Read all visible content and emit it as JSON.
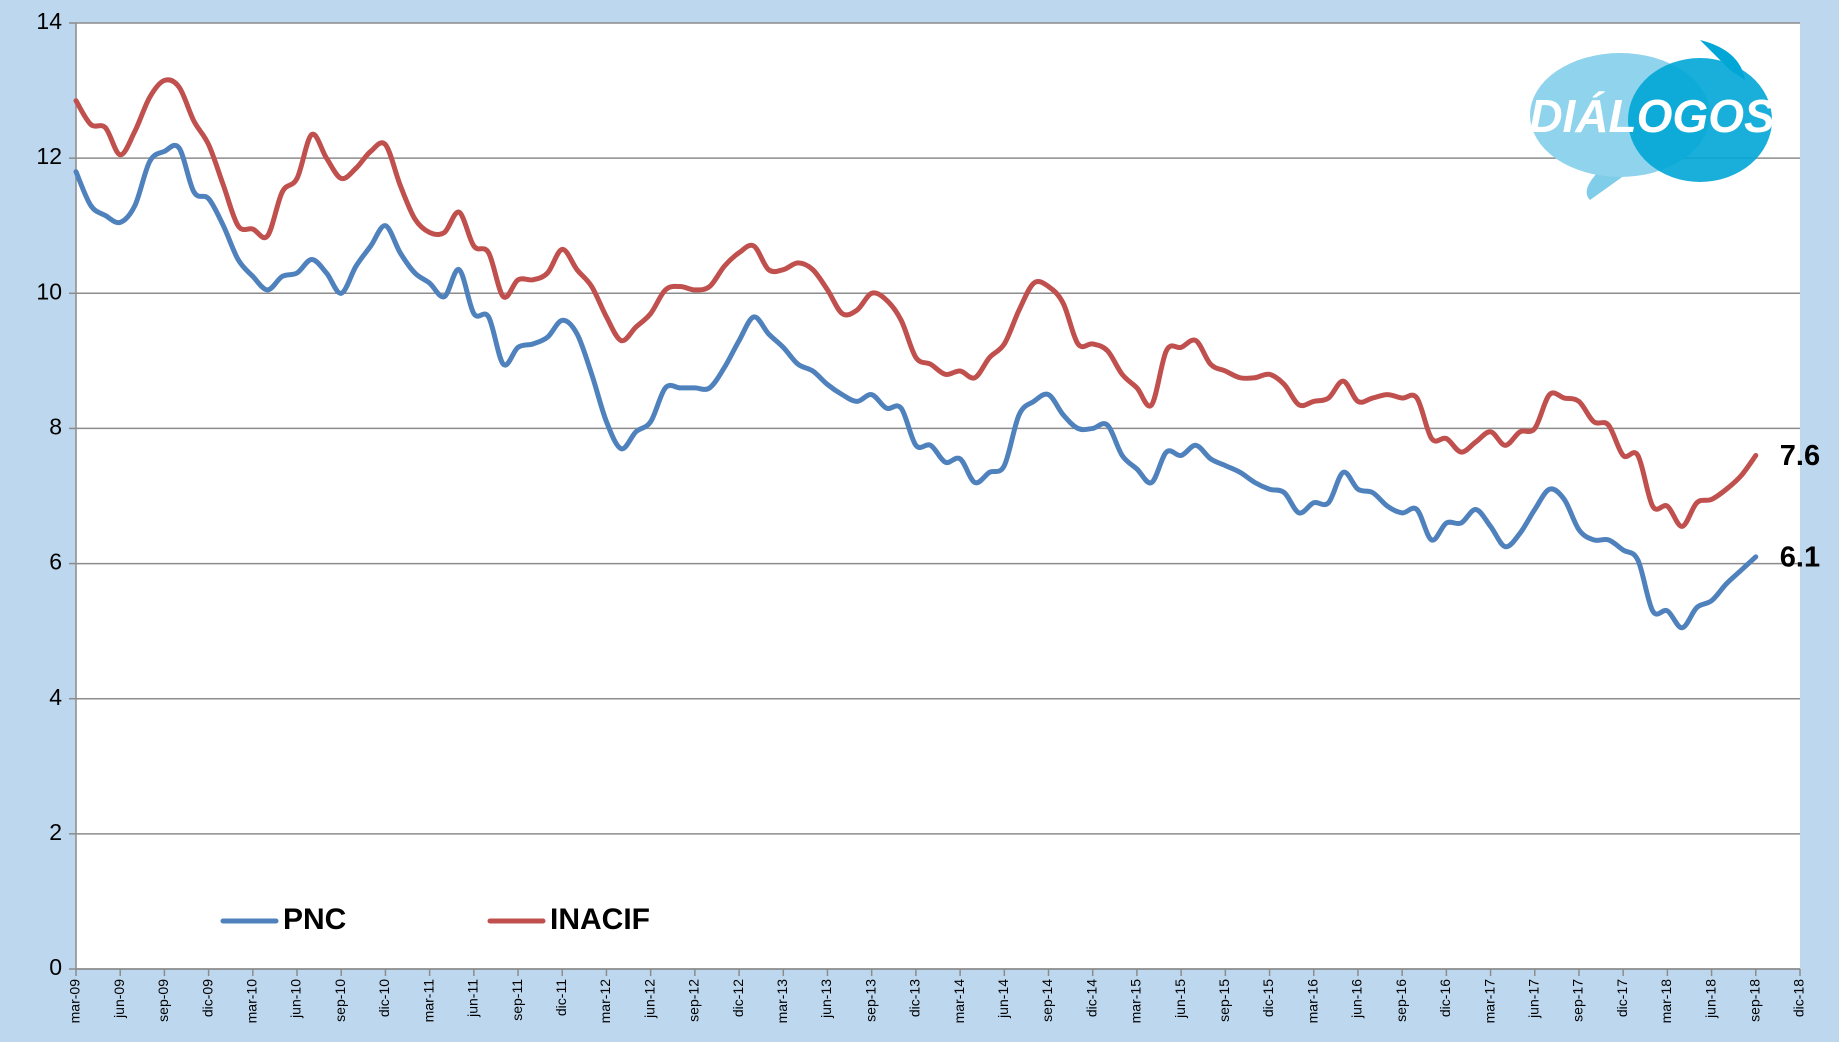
{
  "chart_data": {
    "type": "line",
    "logo": "DIÁLOGOS",
    "categories": [
      "mar-09",
      null,
      null,
      "jun-09",
      null,
      null,
      "sep-09",
      null,
      null,
      "dic-09",
      null,
      null,
      "mar-10",
      null,
      null,
      "jun-10",
      null,
      null,
      "sep-10",
      null,
      null,
      "dic-10",
      null,
      null,
      "mar-11",
      null,
      null,
      "jun-11",
      null,
      null,
      "sep-11",
      null,
      null,
      "dic-11",
      null,
      null,
      "mar-12",
      null,
      null,
      "jun-12",
      null,
      null,
      "sep-12",
      null,
      null,
      "dic-12",
      null,
      null,
      "mar-13",
      null,
      null,
      "jun-13",
      null,
      null,
      "sep-13",
      null,
      null,
      "dic-13",
      null,
      null,
      "mar-14",
      null,
      null,
      "jun-14",
      null,
      null,
      "sep-14",
      null,
      null,
      "dic-14",
      null,
      null,
      "mar-15",
      null,
      null,
      "jun-15",
      null,
      null,
      "sep-15",
      null,
      null,
      "dic-15",
      null,
      null,
      "mar-16",
      null,
      null,
      "jun-16",
      null,
      null,
      "sep-16",
      null,
      null,
      "dic-16",
      null,
      null,
      "mar-17",
      null,
      null,
      "jun-17",
      null,
      null,
      "sep-17",
      null,
      null,
      "dic-17",
      null,
      null,
      "mar-18",
      null,
      null,
      "jun-18",
      null,
      null,
      "sep-18",
      null,
      null,
      "dic-18"
    ],
    "series": [
      {
        "name": "PNC",
        "color": "#4f81bd",
        "values": [
          11.8,
          11.3,
          11.15,
          11.05,
          11.3,
          11.95,
          12.1,
          12.15,
          11.5,
          11.4,
          11.0,
          10.5,
          10.25,
          10.05,
          10.25,
          10.3,
          10.5,
          10.3,
          10.0,
          10.4,
          10.7,
          11.0,
          10.6,
          10.3,
          10.15,
          9.95,
          10.35,
          9.7,
          9.65,
          8.95,
          9.2,
          9.25,
          9.35,
          9.6,
          9.4,
          8.8,
          8.1,
          7.7,
          7.95,
          8.1,
          8.6,
          8.6,
          8.6,
          8.6,
          8.9,
          9.3,
          9.65,
          9.4,
          9.2,
          8.95,
          8.85,
          8.65,
          8.5,
          8.4,
          8.5,
          8.3,
          8.3,
          7.75,
          7.75,
          7.5,
          7.55,
          7.2,
          7.35,
          7.45,
          8.2,
          8.4,
          8.5,
          8.2,
          8.0,
          8.0,
          8.05,
          7.6,
          7.4,
          7.2,
          7.65,
          7.6,
          7.75,
          7.55,
          7.45,
          7.35,
          7.2,
          7.1,
          7.05,
          6.75,
          6.9,
          6.9,
          7.35,
          7.1,
          7.05,
          6.85,
          6.75,
          6.8,
          6.35,
          6.6,
          6.6,
          6.8,
          6.55,
          6.25,
          6.45,
          6.8,
          7.1,
          6.95,
          6.5,
          6.35,
          6.35,
          6.2,
          6.05,
          5.3,
          5.3,
          5.05,
          5.35,
          5.45,
          5.7,
          5.9,
          6.1,
          null,
          null,
          null
        ]
      },
      {
        "name": "INACIF",
        "color": "#c0504d",
        "values": [
          12.85,
          12.5,
          12.45,
          12.05,
          12.4,
          12.9,
          13.15,
          13.05,
          12.55,
          12.2,
          11.6,
          11.0,
          10.95,
          10.85,
          11.5,
          11.7,
          12.35,
          12.0,
          11.7,
          11.85,
          12.1,
          12.2,
          11.6,
          11.1,
          10.9,
          10.9,
          11.2,
          10.7,
          10.6,
          9.95,
          10.2,
          10.2,
          10.3,
          10.65,
          10.35,
          10.1,
          9.65,
          9.3,
          9.5,
          9.7,
          10.05,
          10.1,
          10.05,
          10.1,
          10.4,
          10.6,
          10.7,
          10.35,
          10.35,
          10.45,
          10.35,
          10.05,
          9.7,
          9.75,
          10.0,
          9.9,
          9.6,
          9.05,
          8.95,
          8.8,
          8.85,
          8.75,
          9.05,
          9.25,
          9.75,
          10.15,
          10.1,
          9.85,
          9.25,
          9.25,
          9.15,
          8.8,
          8.6,
          8.35,
          9.15,
          9.2,
          9.3,
          8.95,
          8.85,
          8.75,
          8.75,
          8.8,
          8.65,
          8.35,
          8.4,
          8.45,
          8.7,
          8.4,
          8.45,
          8.5,
          8.45,
          8.45,
          7.85,
          7.85,
          7.65,
          7.8,
          7.95,
          7.75,
          7.95,
          8.0,
          8.5,
          8.45,
          8.4,
          8.1,
          8.05,
          7.6,
          7.6,
          6.85,
          6.85,
          6.55,
          6.9,
          6.95,
          7.1,
          7.3,
          7.6,
          null,
          null,
          null
        ]
      }
    ],
    "ylim": [
      0,
      14
    ],
    "yticks": [
      0,
      2,
      4,
      6,
      8,
      10,
      12,
      14
    ],
    "grid": true,
    "legend": "lower left"
  }
}
